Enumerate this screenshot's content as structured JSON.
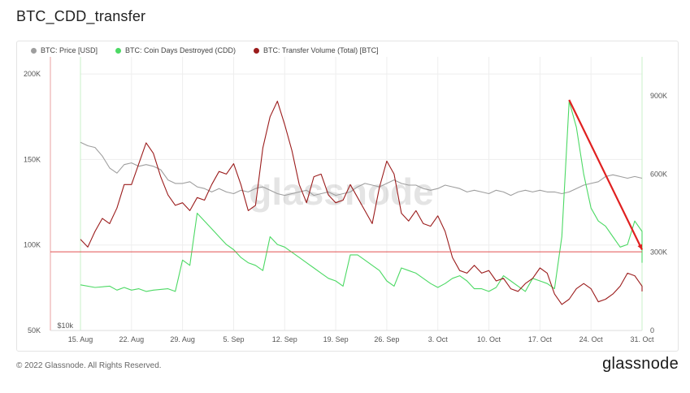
{
  "page": {
    "title": "BTC_CDD_transfer",
    "copyright": "© 2022 Glassnode. All Rights Reserved.",
    "brand": "glassnode",
    "watermark": "glassnode"
  },
  "legend": [
    {
      "label": "BTC: Price [USD]",
      "color": "#9e9e9e"
    },
    {
      "label": "BTC: Coin Days Destroyed (CDD)",
      "color": "#4cd964"
    },
    {
      "label": "BTC: Transfer Volume (Total) [BTC]",
      "color": "#9b1c1c"
    }
  ],
  "chart_data": {
    "type": "line",
    "x_tick_labels": [
      "15. Aug",
      "22. Aug",
      "29. Aug",
      "5. Sep",
      "12. Sep",
      "19. Sep",
      "26. Sep",
      "3. Oct",
      "10. Oct",
      "17. Oct",
      "24. Oct",
      "31. Oct"
    ],
    "x_range_days": [
      0,
      77
    ],
    "left_axis": {
      "ticks": [
        "$10k",
        "50K",
        "100K",
        "150K",
        "200K"
      ],
      "range": [
        50000,
        210000
      ]
    },
    "right_axis": {
      "ticks": [
        "0",
        "300K",
        "600K",
        "900K"
      ],
      "range": [
        0,
        1050000
      ]
    },
    "series": [
      {
        "name": "BTC: Price [USD]",
        "axis": "left",
        "color": "#9e9e9e",
        "points": [
          [
            0,
            160000
          ],
          [
            1,
            158000
          ],
          [
            2,
            157000
          ],
          [
            3,
            152000
          ],
          [
            4,
            145000
          ],
          [
            5,
            142000
          ],
          [
            6,
            147000
          ],
          [
            7,
            148000
          ],
          [
            8,
            146000
          ],
          [
            9,
            147000
          ],
          [
            10,
            146000
          ],
          [
            11,
            144000
          ],
          [
            12,
            138000
          ],
          [
            13,
            136000
          ],
          [
            14,
            136000
          ],
          [
            15,
            137000
          ],
          [
            16,
            134000
          ],
          [
            17,
            133000
          ],
          [
            18,
            131000
          ],
          [
            19,
            133000
          ],
          [
            20,
            131000
          ],
          [
            21,
            130000
          ],
          [
            22,
            132000
          ],
          [
            23,
            131000
          ],
          [
            24,
            133000
          ],
          [
            25,
            134000
          ],
          [
            26,
            132000
          ],
          [
            27,
            130000
          ],
          [
            28,
            129000
          ],
          [
            29,
            130000
          ],
          [
            30,
            131000
          ],
          [
            31,
            132000
          ],
          [
            32,
            129000
          ],
          [
            33,
            130000
          ],
          [
            34,
            131000
          ],
          [
            35,
            129000
          ],
          [
            36,
            130000
          ],
          [
            37,
            131000
          ],
          [
            38,
            134000
          ],
          [
            39,
            136000
          ],
          [
            40,
            135000
          ],
          [
            41,
            134000
          ],
          [
            42,
            136000
          ],
          [
            43,
            138000
          ],
          [
            44,
            136000
          ],
          [
            45,
            135000
          ],
          [
            46,
            135000
          ],
          [
            47,
            133000
          ],
          [
            48,
            132000
          ],
          [
            49,
            133000
          ],
          [
            50,
            135000
          ],
          [
            51,
            134000
          ],
          [
            52,
            133000
          ],
          [
            53,
            131000
          ],
          [
            54,
            132000
          ],
          [
            55,
            131000
          ],
          [
            56,
            130000
          ],
          [
            57,
            132000
          ],
          [
            58,
            131000
          ],
          [
            59,
            129000
          ],
          [
            60,
            131000
          ],
          [
            61,
            132000
          ],
          [
            62,
            131000
          ],
          [
            63,
            132000
          ],
          [
            64,
            131000
          ],
          [
            65,
            131000
          ],
          [
            66,
            130000
          ],
          [
            67,
            131000
          ],
          [
            68,
            133000
          ],
          [
            69,
            135000
          ],
          [
            70,
            136000
          ],
          [
            71,
            137000
          ],
          [
            72,
            140000
          ],
          [
            73,
            141000
          ],
          [
            74,
            140000
          ],
          [
            75,
            139000
          ],
          [
            76,
            140000
          ],
          [
            77,
            139000
          ]
        ]
      },
      {
        "name": "BTC: Coin Days Destroyed (CDD)",
        "axis": "right",
        "color": "#4cd964",
        "points": [
          [
            0,
            175000
          ],
          [
            2,
            165000
          ],
          [
            4,
            170000
          ],
          [
            5,
            155000
          ],
          [
            6,
            165000
          ],
          [
            7,
            155000
          ],
          [
            8,
            160000
          ],
          [
            9,
            150000
          ],
          [
            10,
            155000
          ],
          [
            12,
            160000
          ],
          [
            13,
            150000
          ],
          [
            14,
            270000
          ],
          [
            15,
            250000
          ],
          [
            16,
            450000
          ],
          [
            17,
            420000
          ],
          [
            18,
            390000
          ],
          [
            19,
            360000
          ],
          [
            20,
            330000
          ],
          [
            21,
            310000
          ],
          [
            22,
            280000
          ],
          [
            23,
            260000
          ],
          [
            24,
            250000
          ],
          [
            25,
            230000
          ],
          [
            26,
            360000
          ],
          [
            27,
            330000
          ],
          [
            28,
            320000
          ],
          [
            29,
            300000
          ],
          [
            30,
            280000
          ],
          [
            31,
            260000
          ],
          [
            32,
            240000
          ],
          [
            33,
            220000
          ],
          [
            34,
            200000
          ],
          [
            35,
            190000
          ],
          [
            36,
            170000
          ],
          [
            37,
            290000
          ],
          [
            38,
            290000
          ],
          [
            39,
            270000
          ],
          [
            40,
            250000
          ],
          [
            41,
            230000
          ],
          [
            42,
            190000
          ],
          [
            43,
            170000
          ],
          [
            44,
            240000
          ],
          [
            45,
            230000
          ],
          [
            46,
            220000
          ],
          [
            47,
            200000
          ],
          [
            48,
            180000
          ],
          [
            49,
            165000
          ],
          [
            50,
            180000
          ],
          [
            51,
            200000
          ],
          [
            52,
            210000
          ],
          [
            53,
            190000
          ],
          [
            54,
            160000
          ],
          [
            55,
            160000
          ],
          [
            56,
            150000
          ],
          [
            57,
            165000
          ],
          [
            58,
            210000
          ],
          [
            59,
            190000
          ],
          [
            60,
            170000
          ],
          [
            61,
            150000
          ],
          [
            62,
            200000
          ],
          [
            63,
            190000
          ],
          [
            64,
            180000
          ],
          [
            65,
            160000
          ],
          [
            66,
            360000
          ],
          [
            67,
            880000
          ],
          [
            68,
            780000
          ],
          [
            69,
            600000
          ],
          [
            70,
            470000
          ],
          [
            71,
            420000
          ],
          [
            72,
            400000
          ],
          [
            73,
            360000
          ],
          [
            74,
            320000
          ],
          [
            75,
            330000
          ],
          [
            76,
            420000
          ],
          [
            77,
            380000
          ],
          [
            78,
            320000
          ],
          [
            79,
            260000
          ]
        ]
      },
      {
        "name": "BTC: Transfer Volume (Total) [BTC]",
        "axis": "right",
        "color": "#9b1c1c",
        "points": [
          [
            0,
            350000
          ],
          [
            1,
            320000
          ],
          [
            2,
            380000
          ],
          [
            3,
            430000
          ],
          [
            4,
            410000
          ],
          [
            5,
            470000
          ],
          [
            6,
            560000
          ],
          [
            7,
            560000
          ],
          [
            8,
            640000
          ],
          [
            9,
            720000
          ],
          [
            10,
            680000
          ],
          [
            11,
            590000
          ],
          [
            12,
            520000
          ],
          [
            13,
            480000
          ],
          [
            14,
            490000
          ],
          [
            15,
            460000
          ],
          [
            16,
            510000
          ],
          [
            17,
            500000
          ],
          [
            18,
            560000
          ],
          [
            19,
            610000
          ],
          [
            20,
            600000
          ],
          [
            21,
            640000
          ],
          [
            22,
            560000
          ],
          [
            23,
            460000
          ],
          [
            24,
            480000
          ],
          [
            25,
            700000
          ],
          [
            26,
            820000
          ],
          [
            27,
            880000
          ],
          [
            28,
            790000
          ],
          [
            29,
            690000
          ],
          [
            30,
            560000
          ],
          [
            31,
            490000
          ],
          [
            32,
            590000
          ],
          [
            33,
            600000
          ],
          [
            34,
            520000
          ],
          [
            35,
            490000
          ],
          [
            36,
            500000
          ],
          [
            37,
            560000
          ],
          [
            38,
            510000
          ],
          [
            39,
            460000
          ],
          [
            40,
            410000
          ],
          [
            41,
            550000
          ],
          [
            42,
            650000
          ],
          [
            43,
            600000
          ],
          [
            44,
            450000
          ],
          [
            45,
            420000
          ],
          [
            46,
            460000
          ],
          [
            47,
            410000
          ],
          [
            48,
            400000
          ],
          [
            49,
            440000
          ],
          [
            50,
            380000
          ],
          [
            51,
            280000
          ],
          [
            52,
            230000
          ],
          [
            53,
            220000
          ],
          [
            54,
            250000
          ],
          [
            55,
            220000
          ],
          [
            56,
            230000
          ],
          [
            57,
            190000
          ],
          [
            58,
            200000
          ],
          [
            59,
            160000
          ],
          [
            60,
            150000
          ],
          [
            61,
            180000
          ],
          [
            62,
            200000
          ],
          [
            63,
            240000
          ],
          [
            64,
            220000
          ],
          [
            65,
            140000
          ],
          [
            66,
            100000
          ],
          [
            67,
            120000
          ],
          [
            68,
            160000
          ],
          [
            69,
            180000
          ],
          [
            70,
            160000
          ],
          [
            71,
            110000
          ],
          [
            72,
            120000
          ],
          [
            73,
            140000
          ],
          [
            74,
            170000
          ],
          [
            75,
            220000
          ],
          [
            76,
            210000
          ],
          [
            77,
            170000
          ],
          [
            78,
            150000
          ]
        ]
      }
    ],
    "annotations": [
      {
        "type": "arrow",
        "color": "#e02020",
        "from": [
          67,
          885000
        ],
        "to": [
          79,
          310000
        ]
      },
      {
        "type": "hline",
        "color": "#e05050",
        "axis": "left",
        "y": 96000
      }
    ],
    "grid": true,
    "legend_position": "top-left"
  }
}
